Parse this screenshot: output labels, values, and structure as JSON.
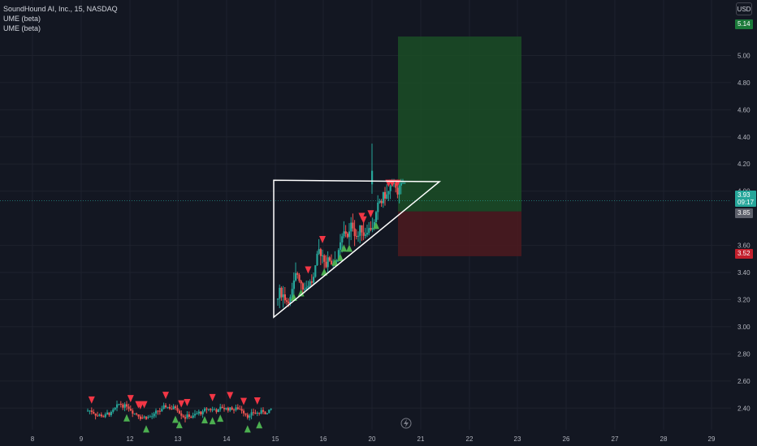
{
  "legend": {
    "symbol": "SoundHound AI, Inc., 15, NASDAQ",
    "indicator1": "UME (beta)",
    "indicator2": "UME (beta)"
  },
  "currency_button": "USD",
  "price_badges": {
    "target": "5.14",
    "current_price": "3.93",
    "countdown": "09:17",
    "entry": "3.85",
    "stop": "3.52"
  },
  "colors": {
    "background": "#131722",
    "up": "#26a69a",
    "down": "#ef5350",
    "signal_up": "#4caf50",
    "signal_down": "#f23645",
    "profit_zone": "#1b4d26",
    "loss_zone": "#4a1a1f"
  },
  "y_axis_ticks": [
    "5.00",
    "4.80",
    "4.60",
    "4.40",
    "4.20",
    "4.00",
    "3.60",
    "3.40",
    "3.20",
    "3.00",
    "2.80",
    "2.60",
    "2.40"
  ],
  "x_axis_ticks": [
    "8",
    "9",
    "12",
    "13",
    "14",
    "15",
    "16",
    "20",
    "21",
    "22",
    "23",
    "26",
    "27",
    "28",
    "29"
  ],
  "chart_data": {
    "type": "candlestick",
    "ylim": [
      2.3,
      5.2
    ],
    "grid": true,
    "triangle_pattern": {
      "top_left": [
        "15",
        4.08
      ],
      "bottom_left": [
        "15",
        3.07
      ],
      "apex": [
        "21",
        4.07
      ]
    },
    "position_tool": {
      "target": 5.14,
      "entry": 3.85,
      "stop": 3.52
    },
    "last_price": 3.93
  }
}
